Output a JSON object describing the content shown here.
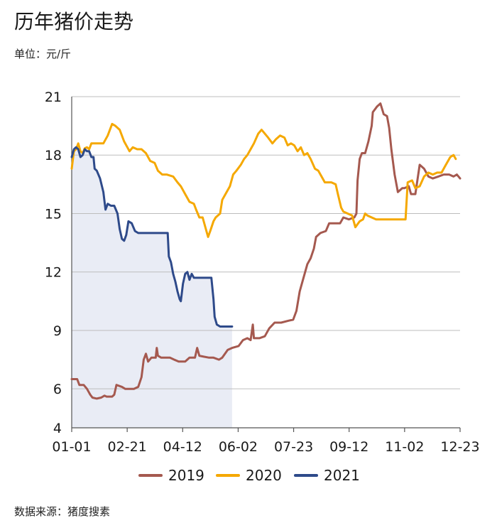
{
  "title": "历年猪价走势",
  "unit_label": "单位：元/斤",
  "source_label": "数据来源：猪度搜素",
  "chart_data": {
    "type": "line",
    "ylim": [
      4,
      21
    ],
    "y_ticks": [
      4,
      6,
      9,
      12,
      15,
      18,
      21
    ],
    "x_ticks": [
      "01-01",
      "02-21",
      "04-12",
      "06-02",
      "07-23",
      "09-12",
      "11-02",
      "12-23"
    ],
    "x_range_days": [
      0,
      356
    ],
    "grid": true,
    "legend_position": "bottom",
    "area_fill_series": "2021",
    "area_fill_color": "#e9ecf5",
    "series": [
      {
        "name": "2019",
        "color": "#a5594f",
        "points": [
          [
            0,
            6.5
          ],
          [
            3,
            6.5
          ],
          [
            5,
            6.5
          ],
          [
            7,
            6.2
          ],
          [
            11,
            6.2
          ],
          [
            14,
            6.0
          ],
          [
            17,
            5.7
          ],
          [
            19,
            5.55
          ],
          [
            23,
            5.5
          ],
          [
            27,
            5.55
          ],
          [
            30,
            5.65
          ],
          [
            32,
            5.6
          ],
          [
            37,
            5.6
          ],
          [
            39,
            5.7
          ],
          [
            41,
            6.2
          ],
          [
            46,
            6.1
          ],
          [
            49,
            6.0
          ],
          [
            57,
            6.0
          ],
          [
            61,
            6.1
          ],
          [
            64,
            6.6
          ],
          [
            66,
            7.5
          ],
          [
            68,
            7.8
          ],
          [
            70,
            7.4
          ],
          [
            73,
            7.6
          ],
          [
            75,
            7.6
          ],
          [
            77,
            7.6
          ],
          [
            78,
            8.1
          ],
          [
            79,
            7.7
          ],
          [
            82,
            7.6
          ],
          [
            90,
            7.6
          ],
          [
            94,
            7.5
          ],
          [
            98,
            7.4
          ],
          [
            104,
            7.4
          ],
          [
            108,
            7.6
          ],
          [
            113,
            7.6
          ],
          [
            115,
            8.1
          ],
          [
            117,
            7.7
          ],
          [
            121,
            7.65
          ],
          [
            126,
            7.6
          ],
          [
            130,
            7.6
          ],
          [
            135,
            7.5
          ],
          [
            138,
            7.6
          ],
          [
            143,
            8.0
          ],
          [
            147,
            8.1
          ],
          [
            153,
            8.2
          ],
          [
            157,
            8.5
          ],
          [
            161,
            8.6
          ],
          [
            164,
            8.5
          ],
          [
            166,
            9.3
          ],
          [
            167,
            8.6
          ],
          [
            172,
            8.6
          ],
          [
            177,
            8.7
          ],
          [
            181,
            9.1
          ],
          [
            186,
            9.4
          ],
          [
            192,
            9.4
          ],
          [
            199,
            9.5
          ],
          [
            203,
            9.55
          ],
          [
            206,
            10.0
          ],
          [
            209,
            11.0
          ],
          [
            212,
            11.6
          ],
          [
            216,
            12.4
          ],
          [
            219,
            12.7
          ],
          [
            222,
            13.2
          ],
          [
            224,
            13.8
          ],
          [
            228,
            14.0
          ],
          [
            233,
            14.1
          ],
          [
            236,
            14.5
          ],
          [
            241,
            14.5
          ],
          [
            246,
            14.5
          ],
          [
            249,
            14.8
          ],
          [
            254,
            14.7
          ],
          [
            259,
            14.8
          ],
          [
            261,
            15.0
          ],
          [
            262,
            16.7
          ],
          [
            264,
            17.8
          ],
          [
            266,
            18.1
          ],
          [
            269,
            18.1
          ],
          [
            272,
            18.7
          ],
          [
            275,
            19.5
          ],
          [
            276,
            20.2
          ],
          [
            280,
            20.5
          ],
          [
            283,
            20.65
          ],
          [
            286,
            20.1
          ],
          [
            289,
            20.0
          ],
          [
            291,
            19.4
          ],
          [
            293,
            18.3
          ],
          [
            296,
            17.0
          ],
          [
            299,
            16.1
          ],
          [
            303,
            16.3
          ],
          [
            305,
            16.3
          ],
          [
            309,
            16.4
          ],
          [
            311,
            16.0
          ],
          [
            315,
            16.0
          ],
          [
            319,
            17.5
          ],
          [
            323,
            17.3
          ],
          [
            327,
            16.9
          ],
          [
            331,
            16.8
          ],
          [
            336,
            16.9
          ],
          [
            341,
            17.0
          ],
          [
            346,
            17.0
          ],
          [
            350,
            16.9
          ],
          [
            353,
            17.0
          ],
          [
            356,
            16.8
          ]
        ]
      },
      {
        "name": "2020",
        "color": "#f5a800",
        "points": [
          [
            0,
            17.3
          ],
          [
            2,
            18.2
          ],
          [
            4,
            18.3
          ],
          [
            6,
            18.6
          ],
          [
            8,
            18.2
          ],
          [
            10,
            18.1
          ],
          [
            12,
            18.35
          ],
          [
            14,
            18.4
          ],
          [
            16,
            18.3
          ],
          [
            18,
            18.6
          ],
          [
            20,
            18.6
          ],
          [
            24,
            18.6
          ],
          [
            29,
            18.6
          ],
          [
            33,
            19.0
          ],
          [
            37,
            19.6
          ],
          [
            40,
            19.5
          ],
          [
            44,
            19.3
          ],
          [
            48,
            18.7
          ],
          [
            51,
            18.4
          ],
          [
            53,
            18.2
          ],
          [
            56,
            18.4
          ],
          [
            60,
            18.3
          ],
          [
            64,
            18.3
          ],
          [
            68,
            18.1
          ],
          [
            72,
            17.7
          ],
          [
            76,
            17.6
          ],
          [
            79,
            17.2
          ],
          [
            83,
            17.0
          ],
          [
            87,
            17.0
          ],
          [
            93,
            16.9
          ],
          [
            97,
            16.6
          ],
          [
            100,
            16.4
          ],
          [
            104,
            16.0
          ],
          [
            108,
            15.6
          ],
          [
            112,
            15.5
          ],
          [
            114,
            15.2
          ],
          [
            117,
            14.8
          ],
          [
            120,
            14.8
          ],
          [
            124,
            14.0
          ],
          [
            125,
            13.8
          ],
          [
            127,
            14.1
          ],
          [
            130,
            14.6
          ],
          [
            132,
            14.8
          ],
          [
            136,
            15.0
          ],
          [
            138,
            15.7
          ],
          [
            141,
            16.0
          ],
          [
            145,
            16.4
          ],
          [
            148,
            17.0
          ],
          [
            151,
            17.2
          ],
          [
            155,
            17.5
          ],
          [
            158,
            17.8
          ],
          [
            161,
            18.0
          ],
          [
            164,
            18.3
          ],
          [
            167,
            18.6
          ],
          [
            171,
            19.1
          ],
          [
            174,
            19.3
          ],
          [
            177,
            19.1
          ],
          [
            180,
            18.9
          ],
          [
            184,
            18.6
          ],
          [
            187,
            18.8
          ],
          [
            191,
            19.0
          ],
          [
            195,
            18.9
          ],
          [
            198,
            18.5
          ],
          [
            201,
            18.6
          ],
          [
            204,
            18.5
          ],
          [
            207,
            18.2
          ],
          [
            210,
            18.4
          ],
          [
            213,
            18.0
          ],
          [
            216,
            18.1
          ],
          [
            219,
            17.8
          ],
          [
            223,
            17.3
          ],
          [
            226,
            17.2
          ],
          [
            229,
            16.9
          ],
          [
            232,
            16.6
          ],
          [
            235,
            16.6
          ],
          [
            238,
            16.6
          ],
          [
            242,
            16.5
          ],
          [
            244,
            16.0
          ],
          [
            247,
            15.3
          ],
          [
            249,
            15.1
          ],
          [
            253,
            15.0
          ],
          [
            257,
            14.9
          ],
          [
            260,
            14.3
          ],
          [
            264,
            14.6
          ],
          [
            267,
            14.7
          ],
          [
            269,
            15.0
          ],
          [
            271,
            14.9
          ],
          [
            275,
            14.8
          ],
          [
            279,
            14.7
          ],
          [
            284,
            14.7
          ],
          [
            288,
            14.7
          ],
          [
            295,
            14.7
          ],
          [
            303,
            14.7
          ],
          [
            306,
            14.7
          ],
          [
            308,
            16.6
          ],
          [
            312,
            16.7
          ],
          [
            315,
            16.3
          ],
          [
            319,
            16.4
          ],
          [
            323,
            16.9
          ],
          [
            327,
            17.1
          ],
          [
            331,
            17.0
          ],
          [
            335,
            17.1
          ],
          [
            339,
            17.1
          ],
          [
            343,
            17.5
          ],
          [
            347,
            17.9
          ],
          [
            350,
            18.0
          ],
          [
            352,
            17.8
          ]
        ]
      },
      {
        "name": "2021",
        "color": "#2e4a8a",
        "points": [
          [
            0,
            17.9
          ],
          [
            2,
            18.3
          ],
          [
            4,
            18.4
          ],
          [
            6,
            18.3
          ],
          [
            8,
            17.9
          ],
          [
            10,
            18.0
          ],
          [
            12,
            18.3
          ],
          [
            14,
            18.2
          ],
          [
            16,
            18.2
          ],
          [
            18,
            17.9
          ],
          [
            20,
            17.9
          ],
          [
            21,
            17.3
          ],
          [
            23,
            17.2
          ],
          [
            26,
            16.8
          ],
          [
            29,
            16.1
          ],
          [
            31,
            15.2
          ],
          [
            33,
            15.5
          ],
          [
            36,
            15.4
          ],
          [
            39,
            15.4
          ],
          [
            42,
            15.0
          ],
          [
            44,
            14.2
          ],
          [
            46,
            13.7
          ],
          [
            48,
            13.6
          ],
          [
            50,
            13.9
          ],
          [
            52,
            14.6
          ],
          [
            55,
            14.5
          ],
          [
            58,
            14.1
          ],
          [
            61,
            14.0
          ],
          [
            64,
            14.0
          ],
          [
            67,
            14.0
          ],
          [
            71,
            14.0
          ],
          [
            76,
            14.0
          ],
          [
            81,
            14.0
          ],
          [
            85,
            14.0
          ],
          [
            88,
            14.0
          ],
          [
            89,
            12.8
          ],
          [
            91,
            12.5
          ],
          [
            93,
            11.9
          ],
          [
            95,
            11.5
          ],
          [
            97,
            11.0
          ],
          [
            99,
            10.6
          ],
          [
            100,
            10.5
          ],
          [
            102,
            11.4
          ],
          [
            104,
            11.9
          ],
          [
            106,
            12.0
          ],
          [
            108,
            11.6
          ],
          [
            110,
            11.9
          ],
          [
            112,
            11.7
          ],
          [
            116,
            11.7
          ],
          [
            120,
            11.7
          ],
          [
            124,
            11.7
          ],
          [
            128,
            11.7
          ],
          [
            130,
            10.6
          ],
          [
            131,
            9.7
          ],
          [
            133,
            9.3
          ],
          [
            136,
            9.2
          ],
          [
            140,
            9.2
          ],
          [
            144,
            9.2
          ],
          [
            147,
            9.2
          ]
        ]
      }
    ]
  }
}
